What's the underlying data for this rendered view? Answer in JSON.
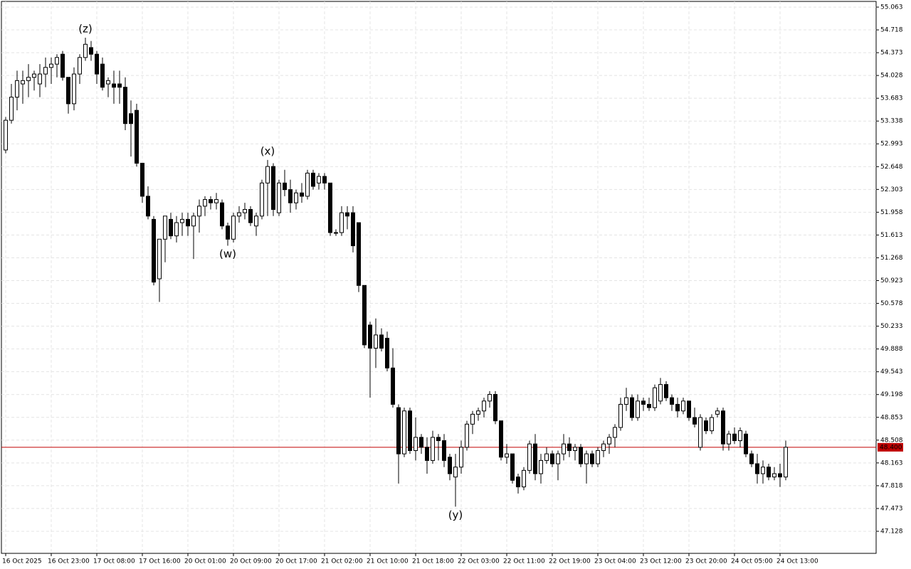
{
  "chart_data": {
    "type": "candlestick",
    "categories": [
      "16 Oct 2025",
      null,
      null,
      null,
      null,
      null,
      null,
      null,
      "16 Oct 23:00",
      null,
      null,
      null,
      null,
      null,
      null,
      null,
      "17 Oct 08:00",
      null,
      null,
      null,
      null,
      null,
      null,
      null,
      "17 Oct 16:00",
      null,
      null,
      null,
      null,
      null,
      null,
      null,
      "20 Oct 01:00",
      null,
      null,
      null,
      null,
      null,
      null,
      null,
      "20 Oct 09:00",
      null,
      null,
      null,
      null,
      null,
      null,
      null,
      "20 Oct 17:00",
      null,
      null,
      null,
      null,
      null,
      null,
      null,
      "21 Oct 02:00",
      null,
      null,
      null,
      null,
      null,
      null,
      null,
      "21 Oct 10:00",
      null,
      null,
      null,
      null,
      null,
      null,
      null,
      "21 Oct 18:00",
      null,
      null,
      null,
      null,
      null,
      null,
      null,
      "22 Oct 03:00",
      null,
      null,
      null,
      null,
      null,
      null,
      null,
      "22 Oct 11:00",
      null,
      null,
      null,
      null,
      null,
      null,
      null,
      "22 Oct 19:00",
      null,
      null,
      null,
      null,
      null,
      null,
      null,
      "23 Oct 04:00",
      null,
      null,
      null,
      null,
      null,
      null,
      null,
      "23 Oct 12:00",
      null,
      null,
      null,
      null,
      null,
      null,
      null,
      "23 Oct 20:00",
      null,
      null,
      null,
      null,
      null,
      null,
      null,
      "24 Oct 05:00",
      null,
      null,
      null,
      null,
      null,
      null,
      null,
      "24 Oct 13:00",
      null
    ],
    "open": [
      52.9,
      53.35,
      53.7,
      53.9,
      53.95,
      54.0,
      53.9,
      54.05,
      54.15,
      54.2,
      54.35,
      54.0,
      53.6,
      54.05,
      54.3,
      54.45,
      54.35,
      54.2,
      53.9,
      53.9,
      53.9,
      53.85,
      53.45,
      53.5,
      52.7,
      52.2,
      51.85,
      50.95,
      51.55,
      51.85,
      51.6,
      51.8,
      51.85,
      51.75,
      51.9,
      52.05,
      52.15,
      52.1,
      52.1,
      51.75,
      51.55,
      51.9,
      51.95,
      52.0,
      51.75,
      51.9,
      52.4,
      52.65,
      51.95,
      52.4,
      52.3,
      52.1,
      52.25,
      52.2,
      52.55,
      52.4,
      52.5,
      52.4,
      51.65,
      51.65,
      51.95,
      51.95,
      51.8,
      50.85,
      50.25,
      49.9,
      50.1,
      50.05,
      49.6,
      49.0,
      48.3,
      48.95,
      48.35,
      48.55,
      48.4,
      48.2,
      48.55,
      48.5,
      48.25,
      47.95,
      48.1,
      48.4,
      48.75,
      48.9,
      48.95,
      49.1,
      49.2,
      48.8,
      48.25,
      48.3,
      47.95,
      47.8,
      48.05,
      48.45,
      48.0,
      48.2,
      48.3,
      48.15,
      48.3,
      48.45,
      48.35,
      48.4,
      48.15,
      48.3,
      48.15,
      48.35,
      48.45,
      48.55,
      48.7,
      49.05,
      49.15,
      48.85,
      49.1,
      49.05,
      49.0,
      49.1,
      49.35,
      49.15,
      49.05,
      48.95,
      49.1,
      48.85,
      48.4,
      48.8,
      48.65,
      48.9,
      48.95,
      48.45,
      48.6,
      48.5,
      48.6,
      48.3,
      48.15,
      48.0,
      48.1,
      47.95,
      48.0,
      47.95
    ],
    "high": [
      53.4,
      53.9,
      54.1,
      54.1,
      54.2,
      54.1,
      54.2,
      54.3,
      54.3,
      54.35,
      54.4,
      54.0,
      54.15,
      54.35,
      54.6,
      54.55,
      54.4,
      54.3,
      54.0,
      54.1,
      54.1,
      54.0,
      53.65,
      53.6,
      52.7,
      52.35,
      51.9,
      51.55,
      51.9,
      51.95,
      51.9,
      51.95,
      51.95,
      51.95,
      52.15,
      52.2,
      52.2,
      52.25,
      52.15,
      51.8,
      51.95,
      52.05,
      52.1,
      52.05,
      51.95,
      52.45,
      52.75,
      52.7,
      52.45,
      52.6,
      52.45,
      52.3,
      52.4,
      52.6,
      52.6,
      52.55,
      52.55,
      52.4,
      51.7,
      52.05,
      52.05,
      52.05,
      51.8,
      50.85,
      50.3,
      50.35,
      50.2,
      50.15,
      49.9,
      49.05,
      49.0,
      49.0,
      48.85,
      48.6,
      48.55,
      48.65,
      48.6,
      48.6,
      48.3,
      48.3,
      48.5,
      48.8,
      48.95,
      49.0,
      49.15,
      49.25,
      49.25,
      48.8,
      48.45,
      48.3,
      48.0,
      48.1,
      48.5,
      48.6,
      48.3,
      48.4,
      48.35,
      48.35,
      48.6,
      48.55,
      48.45,
      48.45,
      48.35,
      48.35,
      48.4,
      48.5,
      48.6,
      48.75,
      49.15,
      49.3,
      49.2,
      49.2,
      49.15,
      49.15,
      49.35,
      49.45,
      49.4,
      49.2,
      49.15,
      49.15,
      49.1,
      49.0,
      48.9,
      48.85,
      48.9,
      49.0,
      49.0,
      48.65,
      48.7,
      48.7,
      48.65,
      48.35,
      48.3,
      48.2,
      48.15,
      48.1,
      48.15,
      48.5
    ],
    "low": [
      52.85,
      53.3,
      53.5,
      53.6,
      53.7,
      53.8,
      53.7,
      53.85,
      53.9,
      54.0,
      53.95,
      53.45,
      53.5,
      53.9,
      54.25,
      54.25,
      53.9,
      53.8,
      53.7,
      53.6,
      53.6,
      53.2,
      52.8,
      52.65,
      52.1,
      51.85,
      50.85,
      50.6,
      51.2,
      51.55,
      51.5,
      51.6,
      51.6,
      51.25,
      51.65,
      51.9,
      52.0,
      52.0,
      51.7,
      51.45,
      51.5,
      51.8,
      51.85,
      51.75,
      51.6,
      51.85,
      51.9,
      51.9,
      51.9,
      52.2,
      51.95,
      52.0,
      52.1,
      52.15,
      52.3,
      52.3,
      52.3,
      51.6,
      51.6,
      51.6,
      51.7,
      51.35,
      50.75,
      49.9,
      49.15,
      49.6,
      49.85,
      49.55,
      49.0,
      47.85,
      48.25,
      48.3,
      48.2,
      48.3,
      48.0,
      48.15,
      48.2,
      48.1,
      47.9,
      47.5,
      48.0,
      48.35,
      48.6,
      48.8,
      48.85,
      49.0,
      48.75,
      48.2,
      48.15,
      47.85,
      47.7,
      47.75,
      48.0,
      47.9,
      47.85,
      48.15,
      48.1,
      47.9,
      48.2,
      48.25,
      48.2,
      48.1,
      47.85,
      48.1,
      48.1,
      48.25,
      48.3,
      48.4,
      48.65,
      48.95,
      48.8,
      48.8,
      48.95,
      48.95,
      48.95,
      49.05,
      49.1,
      48.95,
      48.85,
      48.9,
      48.8,
      48.7,
      48.35,
      48.6,
      48.6,
      48.85,
      48.35,
      48.35,
      48.45,
      48.4,
      48.25,
      48.1,
      47.85,
      47.85,
      47.9,
      47.9,
      47.8,
      47.9
    ],
    "close": [
      53.35,
      53.7,
      53.95,
      53.95,
      54.0,
      54.05,
      54.05,
      54.15,
      54.2,
      54.3,
      54.0,
      53.6,
      54.05,
      54.3,
      54.5,
      54.35,
      54.05,
      53.85,
      53.95,
      53.85,
      53.85,
      53.3,
      53.3,
      52.7,
      52.2,
      51.9,
      50.9,
      51.55,
      51.9,
      51.6,
      51.8,
      51.85,
      51.75,
      51.9,
      52.05,
      52.15,
      52.1,
      52.15,
      51.75,
      51.55,
      51.9,
      51.95,
      52.0,
      51.8,
      51.9,
      52.4,
      52.65,
      52.0,
      52.4,
      52.3,
      52.1,
      52.25,
      52.2,
      52.55,
      52.35,
      52.5,
      52.4,
      51.65,
      51.65,
      51.95,
      51.9,
      51.45,
      50.85,
      49.95,
      49.9,
      50.1,
      49.9,
      49.6,
      49.05,
      48.3,
      48.95,
      48.35,
      48.55,
      48.4,
      48.2,
      48.55,
      48.5,
      48.2,
      48.0,
      48.1,
      48.4,
      48.75,
      48.9,
      48.95,
      49.1,
      49.2,
      48.8,
      48.25,
      48.3,
      47.9,
      47.8,
      48.05,
      48.45,
      48.0,
      48.2,
      48.3,
      48.15,
      48.3,
      48.45,
      48.35,
      48.4,
      48.15,
      48.3,
      48.15,
      48.35,
      48.45,
      48.55,
      48.7,
      49.05,
      49.15,
      48.85,
      49.1,
      49.05,
      49.0,
      49.3,
      49.35,
      49.15,
      49.05,
      48.95,
      49.1,
      48.85,
      48.75,
      48.85,
      48.65,
      48.85,
      48.95,
      48.45,
      48.6,
      48.5,
      48.65,
      48.3,
      48.15,
      48.0,
      48.1,
      47.95,
      48.0,
      47.95,
      48.4
    ],
    "up_color": "#ffffff",
    "down_color": "#000000",
    "ylim": [
      46.794,
      55.149
    ],
    "yticks": [
      55.063,
      54.718,
      54.373,
      54.028,
      53.683,
      53.338,
      52.993,
      52.648,
      52.303,
      51.958,
      51.613,
      51.268,
      50.923,
      50.578,
      50.233,
      49.888,
      49.543,
      49.198,
      48.853,
      48.508,
      48.163,
      47.818,
      47.473,
      47.128
    ],
    "grid": true,
    "last_price": {
      "value": 48.4,
      "label": "48.400"
    },
    "last_price_color": "#c00000",
    "annotations": [
      {
        "text": "(z)",
        "candle": 14,
        "side": "above",
        "color": "#2e9e5b"
      },
      {
        "text": "(w)",
        "candle": 39,
        "side": "below",
        "color": "#2f2fe0"
      },
      {
        "text": "(x)",
        "candle": 46,
        "side": "above",
        "color": "#2f2fe0"
      },
      {
        "text": "(y)",
        "candle": 79,
        "side": "below",
        "color": "#2e9e5b"
      }
    ]
  }
}
